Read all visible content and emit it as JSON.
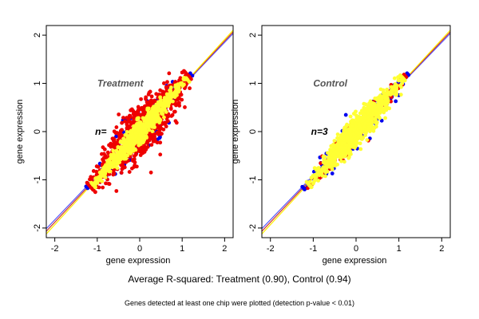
{
  "caption": {
    "main": "Average R-squared: Treatment (0.90), Control (0.94)",
    "foot": "Genes detected at least one chip were plotted (detection p-value < 0.01)"
  },
  "colors": {
    "red": "#ee0000",
    "blue": "#0000ee",
    "yellow": "#ffff33",
    "line_blue": "#5555ff",
    "line_red": "#cc3333",
    "line_yellow": "#ffee00"
  },
  "chart_data": [
    {
      "type": "scatter",
      "title": "Treatment",
      "annotation": "n=",
      "xlabel": "gene expression",
      "ylabel": "gene expression",
      "xlim": [
        -2.2,
        2.2
      ],
      "ylim": [
        -2.2,
        2.2
      ],
      "xticks": [
        -2,
        -1,
        0,
        1,
        2
      ],
      "yticks": [
        -2,
        -1,
        0,
        1,
        2
      ],
      "grid": false,
      "lines": [
        {
          "color": "#5555ff",
          "slope": 0.92,
          "intercept": 0.01
        },
        {
          "color": "#cc3333",
          "slope": 0.94,
          "intercept": 0.0
        },
        {
          "color": "#ffee00",
          "slope": 0.96,
          "intercept": -0.01
        }
      ],
      "clouds": [
        {
          "color": "#0000ee",
          "count": 120,
          "spread": 0.28,
          "range": [
            -1.2,
            1.2
          ]
        },
        {
          "color": "#ee0000",
          "count": 900,
          "spread": 0.25,
          "range": [
            -1.15,
            1.15
          ]
        },
        {
          "color": "#ffff33",
          "count": 700,
          "spread": 0.1,
          "range": [
            -1.1,
            1.1
          ]
        }
      ]
    },
    {
      "type": "scatter",
      "title": "Control",
      "annotation": "n=3",
      "xlabel": "gene expression",
      "ylabel": "gene expression",
      "xlim": [
        -2.2,
        2.2
      ],
      "ylim": [
        -2.2,
        2.2
      ],
      "xticks": [
        -2,
        -1,
        0,
        1,
        2
      ],
      "yticks": [
        -2,
        -1,
        0,
        1,
        2
      ],
      "grid": false,
      "lines": [
        {
          "color": "#5555ff",
          "slope": 0.92,
          "intercept": 0.01
        },
        {
          "color": "#cc3333",
          "slope": 0.94,
          "intercept": 0.0
        },
        {
          "color": "#ffee00",
          "slope": 0.96,
          "intercept": -0.01
        }
      ],
      "clouds": [
        {
          "color": "#0000ee",
          "count": 180,
          "spread": 0.15,
          "range": [
            -1.2,
            1.2
          ]
        },
        {
          "color": "#ee0000",
          "count": 150,
          "spread": 0.12,
          "range": [
            -1.15,
            1.15
          ]
        },
        {
          "color": "#ffff33",
          "count": 900,
          "spread": 0.13,
          "range": [
            -1.1,
            1.1
          ]
        }
      ]
    }
  ]
}
